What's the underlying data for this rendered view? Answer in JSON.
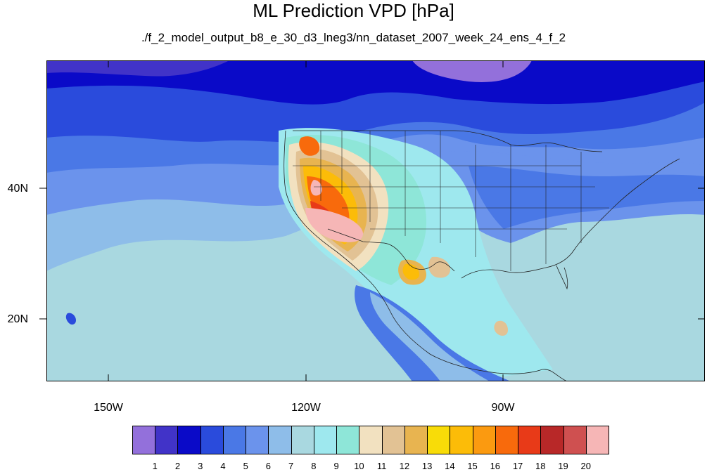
{
  "title": "ML Prediction VPD [hPa]",
  "subtitle": "./f_2_model_output_b8_e_30_d3_lneg3/nn_dataset_2007_week_24_ens_4_f_2",
  "map": {
    "variable": "VPD",
    "units": "hPa",
    "lat_labels": [
      "40N",
      "20N"
    ],
    "lon_labels": [
      "150W",
      "120W",
      "90W"
    ]
  },
  "colorbar": {
    "colors": [
      "#9370db",
      "#4133c8",
      "#0a0ac8",
      "#2a4bdc",
      "#4a78e6",
      "#6b93ec",
      "#8ebde9",
      "#a9d8e0",
      "#9ee8ee",
      "#8ee6d8",
      "#f2e1c0",
      "#e2c294",
      "#e8b450",
      "#f8dc08",
      "#fcbc08",
      "#fb9a10",
      "#f86a0c",
      "#e83a18",
      "#b82828",
      "#cf5050",
      "#f6b6b6"
    ],
    "labels": [
      "1",
      "2",
      "3",
      "4",
      "5",
      "6",
      "7",
      "8",
      "9",
      "10",
      "11",
      "12",
      "13",
      "14",
      "15",
      "16",
      "17",
      "18",
      "19",
      "20"
    ]
  }
}
